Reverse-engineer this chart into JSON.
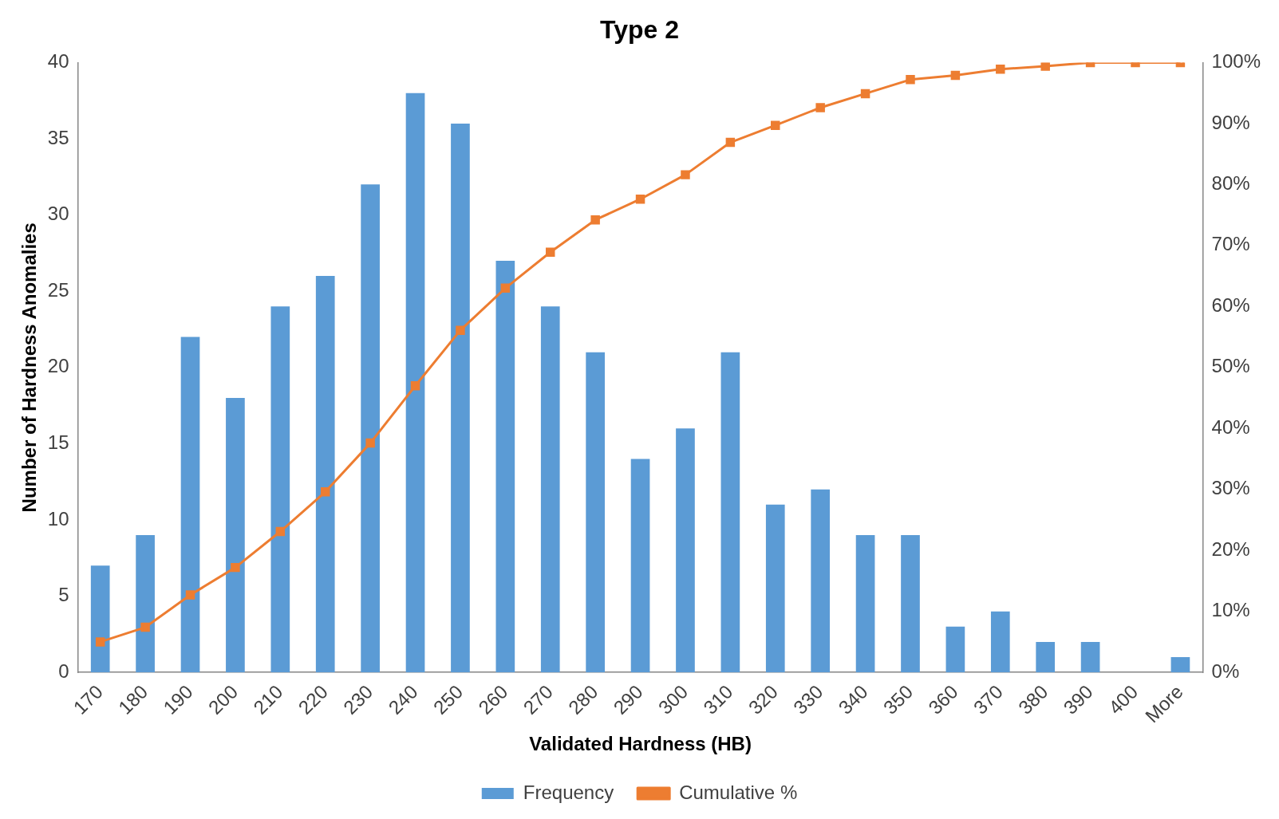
{
  "chart_data": {
    "type": "bar",
    "title": "Type 2",
    "xlabel": "Validated Hardness (HB)",
    "ylabel": "Number of Hardness Anomalies",
    "categories": [
      "170",
      "180",
      "190",
      "200",
      "210",
      "220",
      "230",
      "240",
      "250",
      "260",
      "270",
      "280",
      "290",
      "300",
      "310",
      "320",
      "330",
      "340",
      "350",
      "360",
      "370",
      "380",
      "390",
      "400",
      "More"
    ],
    "series": [
      {
        "name": "Frequency",
        "color": "#5b9bd5",
        "values": [
          7,
          9,
          22,
          18,
          24,
          26,
          32,
          38,
          36,
          27,
          24,
          21,
          14,
          16,
          21,
          11,
          12,
          9,
          9,
          3,
          4,
          2,
          2,
          0,
          1
        ]
      },
      {
        "name": "Cumulative %",
        "type": "line",
        "axis": "y2",
        "color": "#ed7d31",
        "values": [
          5.0,
          7.4,
          12.7,
          17.2,
          23.1,
          29.6,
          37.6,
          47.0,
          56.1,
          63.0,
          68.9,
          74.2,
          77.6,
          81.6,
          86.9,
          89.7,
          92.6,
          94.9,
          97.2,
          97.9,
          98.9,
          99.4,
          100,
          100,
          100
        ]
      }
    ],
    "ylim": [
      0,
      40
    ],
    "yticks": [
      0,
      5,
      10,
      15,
      20,
      25,
      30,
      35,
      40
    ],
    "y2lim": [
      0,
      100
    ],
    "y2ticks": [
      {
        "value": 0,
        "label": "0%"
      },
      {
        "value": 10,
        "label": "10%"
      },
      {
        "value": 20,
        "label": "20%"
      },
      {
        "value": 30,
        "label": "30%"
      },
      {
        "value": 40,
        "label": "40%"
      },
      {
        "value": 50,
        "label": "50%"
      },
      {
        "value": 60,
        "label": "60%"
      },
      {
        "value": 70,
        "label": "70%"
      },
      {
        "value": 80,
        "label": "80%"
      },
      {
        "value": 90,
        "label": "90%"
      },
      {
        "value": 100,
        "label": "100%"
      }
    ],
    "legend": "bottom",
    "marker": "square"
  }
}
